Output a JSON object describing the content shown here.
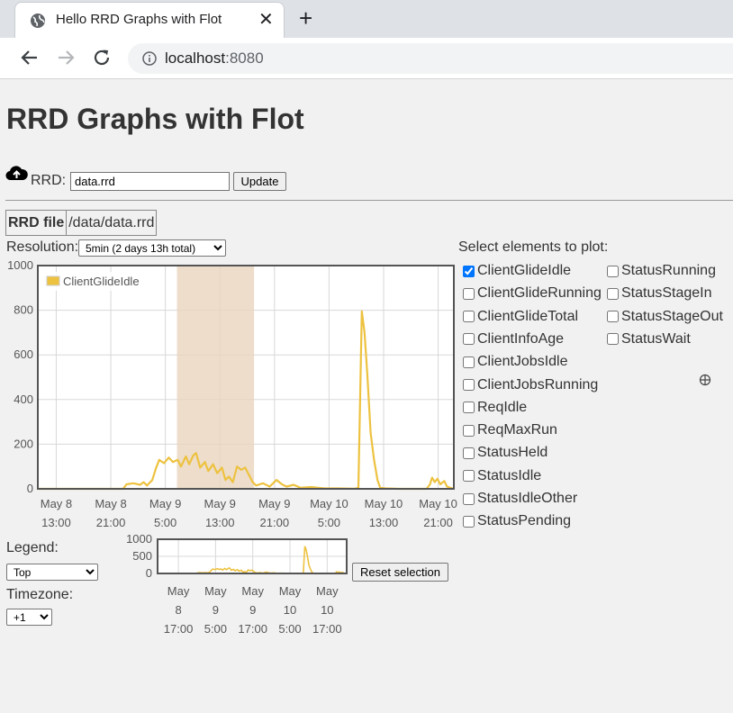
{
  "browser": {
    "tab_title": "Hello RRD Graphs with Flot",
    "new_tab": "+",
    "close": "✕",
    "url_host": "localhost",
    "url_port": ":8080"
  },
  "page": {
    "title": "RRD Graphs with Flot",
    "rrd_label": "RRD:",
    "rrd_value": "data.rrd",
    "update_label": "Update",
    "file_key": "RRD file",
    "file_value": "/data/data.rrd",
    "resolution_label": "Resolution:",
    "resolution_value": "5min (2 days 13h total)",
    "legend_label": "Legend:",
    "legend_value": "Top",
    "timezone_label": "Timezone:",
    "timezone_value": "+1",
    "reset_label": "Reset selection",
    "select_heading": "Select elements to plot:"
  },
  "elements": [
    {
      "label": "ClientGlideIdle",
      "checked": true
    },
    {
      "label": "ClientGlideRunning",
      "checked": false
    },
    {
      "label": "ClientGlideTotal",
      "checked": false
    },
    {
      "label": "ClientInfoAge",
      "checked": false
    },
    {
      "label": "ClientJobsIdle",
      "checked": false
    },
    {
      "label": "ClientJobsRunning",
      "checked": false
    },
    {
      "label": "ReqIdle",
      "checked": false
    },
    {
      "label": "ReqMaxRun",
      "checked": false
    },
    {
      "label": "StatusHeld",
      "checked": false
    },
    {
      "label": "StatusIdle",
      "checked": false
    },
    {
      "label": "StatusIdleOther",
      "checked": false
    },
    {
      "label": "StatusPending",
      "checked": false
    },
    {
      "label": "StatusRunning",
      "checked": false
    },
    {
      "label": "StatusStageIn",
      "checked": false
    },
    {
      "label": "StatusStageOut",
      "checked": false
    },
    {
      "label": "StatusWait",
      "checked": false
    }
  ],
  "colors": {
    "series": "#edc240",
    "selection": "#e8d5bd",
    "grid": "#d8d8d8",
    "frame": "#545454"
  },
  "chart_data": [
    {
      "type": "line",
      "legend": "top-left",
      "grid": true,
      "ylim": [
        0,
        1000
      ],
      "yticks": [
        "0",
        "200",
        "400",
        "600",
        "800",
        "1000"
      ],
      "xticks": [
        [
          "May 8",
          "13:00"
        ],
        [
          "May 8",
          "21:00"
        ],
        [
          "May 9",
          "5:00"
        ],
        [
          "May 9",
          "13:00"
        ],
        [
          "May 9",
          "21:00"
        ],
        [
          "May 10",
          "5:00"
        ],
        [
          "May 10",
          "13:00"
        ],
        [
          "May 10",
          "21:00"
        ]
      ],
      "x_domain_hours": [
        0,
        61
      ],
      "selection_hours": [
        20.4,
        31.7
      ],
      "series": [
        {
          "name": "ClientGlideIdle",
          "points": [
            [
              0,
              0
            ],
            [
              12.5,
              0
            ],
            [
              13.0,
              20
            ],
            [
              14.0,
              25
            ],
            [
              15.0,
              18
            ],
            [
              15.5,
              30
            ],
            [
              16.0,
              15
            ],
            [
              16.8,
              40
            ],
            [
              17.3,
              90
            ],
            [
              17.8,
              130
            ],
            [
              18.5,
              115
            ],
            [
              19.2,
              140
            ],
            [
              19.8,
              120
            ],
            [
              20.5,
              130
            ],
            [
              21.0,
              100
            ],
            [
              21.7,
              145
            ],
            [
              22.2,
              110
            ],
            [
              22.8,
              150
            ],
            [
              23.2,
              160
            ],
            [
              23.8,
              95
            ],
            [
              24.5,
              120
            ],
            [
              25.0,
              80
            ],
            [
              25.7,
              110
            ],
            [
              26.3,
              70
            ],
            [
              27.0,
              95
            ],
            [
              27.5,
              40
            ],
            [
              28.0,
              55
            ],
            [
              28.6,
              30
            ],
            [
              29.2,
              100
            ],
            [
              29.8,
              85
            ],
            [
              30.4,
              95
            ],
            [
              31.0,
              60
            ],
            [
              31.5,
              30
            ],
            [
              32.0,
              15
            ],
            [
              33.0,
              25
            ],
            [
              34.0,
              10
            ],
            [
              35.0,
              40
            ],
            [
              35.8,
              20
            ],
            [
              36.5,
              10
            ],
            [
              37.5,
              18
            ],
            [
              38.5,
              5
            ],
            [
              40.0,
              8
            ],
            [
              42.0,
              2
            ],
            [
              44.0,
              2
            ],
            [
              46.5,
              1
            ],
            [
              47.0,
              5
            ],
            [
              47.5,
              795
            ],
            [
              47.9,
              700
            ],
            [
              48.3,
              520
            ],
            [
              48.8,
              250
            ],
            [
              49.3,
              130
            ],
            [
              49.8,
              40
            ],
            [
              50.2,
              5
            ],
            [
              51.0,
              2
            ],
            [
              53.0,
              0
            ],
            [
              57.0,
              0
            ],
            [
              57.5,
              20
            ],
            [
              57.8,
              50
            ],
            [
              58.2,
              30
            ],
            [
              58.6,
              45
            ],
            [
              59.0,
              20
            ],
            [
              59.6,
              35
            ],
            [
              60.0,
              10
            ],
            [
              60.5,
              5
            ],
            [
              61,
              0
            ]
          ]
        }
      ]
    },
    {
      "type": "line",
      "role": "overview",
      "ylim": [
        0,
        1000
      ],
      "yticks": [
        "0",
        "500",
        "1000"
      ],
      "xticks": [
        [
          "May",
          "8",
          "17:00"
        ],
        [
          "May",
          "9",
          "5:00"
        ],
        [
          "May",
          "9",
          "17:00"
        ],
        [
          "May",
          "10",
          "5:00"
        ],
        [
          "May",
          "10",
          "17:00"
        ]
      ]
    }
  ]
}
